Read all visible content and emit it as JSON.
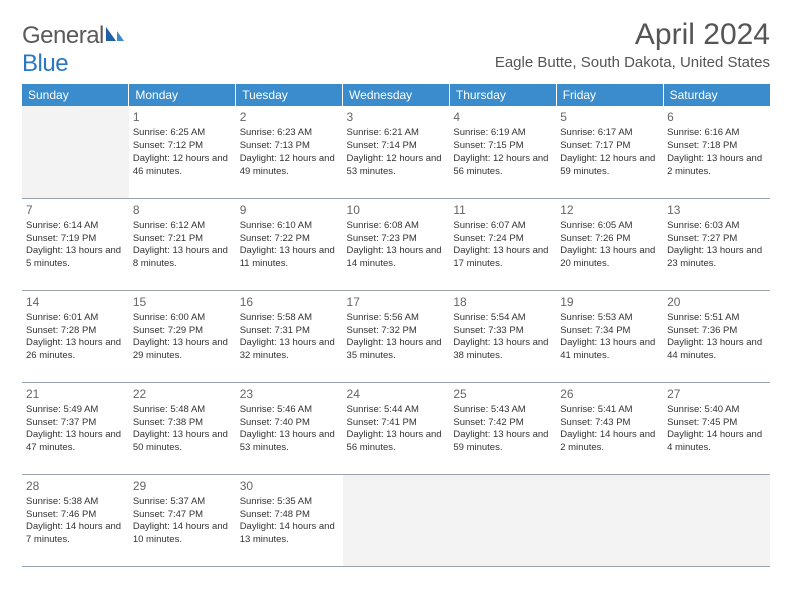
{
  "logo": {
    "text_general": "General",
    "text_blue": "Blue"
  },
  "title": "April 2024",
  "location": "Eagle Butte, South Dakota, United States",
  "colors": {
    "header_bg": "#3b8ccc",
    "header_text": "#ffffff",
    "grid_line": "#9aa3ab",
    "text": "#333333",
    "title_text": "#555555",
    "empty_bg": "#f3f3f3",
    "logo_blue": "#2a78c2",
    "logo_gray": "#5a5a5a"
  },
  "dayHeaders": [
    "Sunday",
    "Monday",
    "Tuesday",
    "Wednesday",
    "Thursday",
    "Friday",
    "Saturday"
  ],
  "weeks": [
    [
      null,
      {
        "n": "1",
        "sr": "6:25 AM",
        "ss": "7:12 PM",
        "dl": "12 hours and 46 minutes."
      },
      {
        "n": "2",
        "sr": "6:23 AM",
        "ss": "7:13 PM",
        "dl": "12 hours and 49 minutes."
      },
      {
        "n": "3",
        "sr": "6:21 AM",
        "ss": "7:14 PM",
        "dl": "12 hours and 53 minutes."
      },
      {
        "n": "4",
        "sr": "6:19 AM",
        "ss": "7:15 PM",
        "dl": "12 hours and 56 minutes."
      },
      {
        "n": "5",
        "sr": "6:17 AM",
        "ss": "7:17 PM",
        "dl": "12 hours and 59 minutes."
      },
      {
        "n": "6",
        "sr": "6:16 AM",
        "ss": "7:18 PM",
        "dl": "13 hours and 2 minutes."
      }
    ],
    [
      {
        "n": "7",
        "sr": "6:14 AM",
        "ss": "7:19 PM",
        "dl": "13 hours and 5 minutes."
      },
      {
        "n": "8",
        "sr": "6:12 AM",
        "ss": "7:21 PM",
        "dl": "13 hours and 8 minutes."
      },
      {
        "n": "9",
        "sr": "6:10 AM",
        "ss": "7:22 PM",
        "dl": "13 hours and 11 minutes."
      },
      {
        "n": "10",
        "sr": "6:08 AM",
        "ss": "7:23 PM",
        "dl": "13 hours and 14 minutes."
      },
      {
        "n": "11",
        "sr": "6:07 AM",
        "ss": "7:24 PM",
        "dl": "13 hours and 17 minutes."
      },
      {
        "n": "12",
        "sr": "6:05 AM",
        "ss": "7:26 PM",
        "dl": "13 hours and 20 minutes."
      },
      {
        "n": "13",
        "sr": "6:03 AM",
        "ss": "7:27 PM",
        "dl": "13 hours and 23 minutes."
      }
    ],
    [
      {
        "n": "14",
        "sr": "6:01 AM",
        "ss": "7:28 PM",
        "dl": "13 hours and 26 minutes."
      },
      {
        "n": "15",
        "sr": "6:00 AM",
        "ss": "7:29 PM",
        "dl": "13 hours and 29 minutes."
      },
      {
        "n": "16",
        "sr": "5:58 AM",
        "ss": "7:31 PM",
        "dl": "13 hours and 32 minutes."
      },
      {
        "n": "17",
        "sr": "5:56 AM",
        "ss": "7:32 PM",
        "dl": "13 hours and 35 minutes."
      },
      {
        "n": "18",
        "sr": "5:54 AM",
        "ss": "7:33 PM",
        "dl": "13 hours and 38 minutes."
      },
      {
        "n": "19",
        "sr": "5:53 AM",
        "ss": "7:34 PM",
        "dl": "13 hours and 41 minutes."
      },
      {
        "n": "20",
        "sr": "5:51 AM",
        "ss": "7:36 PM",
        "dl": "13 hours and 44 minutes."
      }
    ],
    [
      {
        "n": "21",
        "sr": "5:49 AM",
        "ss": "7:37 PM",
        "dl": "13 hours and 47 minutes."
      },
      {
        "n": "22",
        "sr": "5:48 AM",
        "ss": "7:38 PM",
        "dl": "13 hours and 50 minutes."
      },
      {
        "n": "23",
        "sr": "5:46 AM",
        "ss": "7:40 PM",
        "dl": "13 hours and 53 minutes."
      },
      {
        "n": "24",
        "sr": "5:44 AM",
        "ss": "7:41 PM",
        "dl": "13 hours and 56 minutes."
      },
      {
        "n": "25",
        "sr": "5:43 AM",
        "ss": "7:42 PM",
        "dl": "13 hours and 59 minutes."
      },
      {
        "n": "26",
        "sr": "5:41 AM",
        "ss": "7:43 PM",
        "dl": "14 hours and 2 minutes."
      },
      {
        "n": "27",
        "sr": "5:40 AM",
        "ss": "7:45 PM",
        "dl": "14 hours and 4 minutes."
      }
    ],
    [
      {
        "n": "28",
        "sr": "5:38 AM",
        "ss": "7:46 PM",
        "dl": "14 hours and 7 minutes."
      },
      {
        "n": "29",
        "sr": "5:37 AM",
        "ss": "7:47 PM",
        "dl": "14 hours and 10 minutes."
      },
      {
        "n": "30",
        "sr": "5:35 AM",
        "ss": "7:48 PM",
        "dl": "14 hours and 13 minutes."
      },
      null,
      null,
      null,
      null
    ]
  ],
  "labels": {
    "sunrise": "Sunrise:",
    "sunset": "Sunset:",
    "daylight": "Daylight:"
  }
}
